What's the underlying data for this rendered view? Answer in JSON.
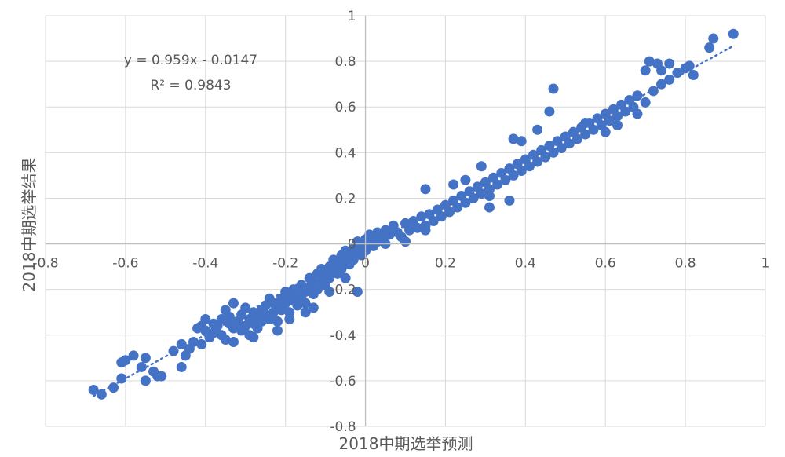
{
  "chart_data": {
    "type": "scatter",
    "title": "",
    "xlabel": "2018中期选举预测",
    "ylabel": "2018中期选举结果",
    "xlim": [
      -0.8,
      1
    ],
    "ylim": [
      -0.8,
      1
    ],
    "x_ticks": [
      -0.8,
      -0.6,
      -0.4,
      -0.2,
      0,
      0.2,
      0.4,
      0.6,
      0.8,
      1
    ],
    "y_ticks": [
      -0.8,
      -0.6,
      -0.4,
      -0.2,
      0,
      0.2,
      0.4,
      0.6,
      0.8,
      1
    ],
    "x_tick_labels": [
      "-0.8",
      "-0.6",
      "-0.4",
      "-0.2",
      "0",
      "0.2",
      "0.4",
      "0.6",
      "0.8",
      "1"
    ],
    "y_tick_labels": [
      "-0.8",
      "-0.6",
      "-0.4",
      "-0.2",
      "0",
      "0.2",
      "0.4",
      "0.6",
      "0.8",
      "1"
    ],
    "grid": true,
    "marker_color": "#4472C4",
    "trendline": {
      "type": "linear",
      "slope": 0.959,
      "intercept": -0.0147,
      "style": "dotted",
      "color": "#4472C4",
      "x_range": [
        -0.68,
        0.92
      ],
      "equation_label": "y = 0.959x - 0.0147",
      "r2_label": "R² = 0.9843"
    },
    "points": [
      [
        -0.68,
        -0.64
      ],
      [
        -0.66,
        -0.66
      ],
      [
        -0.63,
        -0.63
      ],
      [
        -0.61,
        -0.59
      ],
      [
        -0.61,
        -0.52
      ],
      [
        -0.6,
        -0.51
      ],
      [
        -0.58,
        -0.49
      ],
      [
        -0.56,
        -0.54
      ],
      [
        -0.55,
        -0.5
      ],
      [
        -0.55,
        -0.6
      ],
      [
        -0.53,
        -0.56
      ],
      [
        -0.52,
        -0.58
      ],
      [
        -0.51,
        -0.58
      ],
      [
        -0.48,
        -0.47
      ],
      [
        -0.46,
        -0.54
      ],
      [
        -0.46,
        -0.44
      ],
      [
        -0.45,
        -0.49
      ],
      [
        -0.44,
        -0.46
      ],
      [
        -0.43,
        -0.43
      ],
      [
        -0.42,
        -0.37
      ],
      [
        -0.41,
        -0.36
      ],
      [
        -0.4,
        -0.38
      ],
      [
        -0.39,
        -0.41
      ],
      [
        -0.38,
        -0.39
      ],
      [
        -0.37,
        -0.36
      ],
      [
        -0.36,
        -0.4
      ],
      [
        -0.36,
        -0.33
      ],
      [
        -0.35,
        -0.42
      ],
      [
        -0.35,
        -0.29
      ],
      [
        -0.34,
        -0.35
      ],
      [
        -0.34,
        -0.32
      ],
      [
        -0.33,
        -0.37
      ],
      [
        -0.33,
        -0.26
      ],
      [
        -0.32,
        -0.34
      ],
      [
        -0.31,
        -0.31
      ],
      [
        -0.31,
        -0.38
      ],
      [
        -0.3,
        -0.36
      ],
      [
        -0.3,
        -0.28
      ],
      [
        -0.29,
        -0.33
      ],
      [
        -0.29,
        -0.4
      ],
      [
        -0.28,
        -0.35
      ],
      [
        -0.28,
        -0.3
      ],
      [
        -0.27,
        -0.32
      ],
      [
        -0.27,
        -0.37
      ],
      [
        -0.26,
        -0.29
      ],
      [
        -0.26,
        -0.34
      ],
      [
        -0.25,
        -0.31
      ],
      [
        -0.25,
        -0.27
      ],
      [
        -0.24,
        -0.33
      ],
      [
        -0.24,
        -0.24
      ],
      [
        -0.23,
        -0.3
      ],
      [
        -0.23,
        -0.26
      ],
      [
        -0.22,
        -0.28
      ],
      [
        -0.22,
        -0.34
      ],
      [
        -0.21,
        -0.24
      ],
      [
        -0.21,
        -0.29
      ],
      [
        -0.2,
        -0.21
      ],
      [
        -0.2,
        -0.26
      ],
      [
        -0.19,
        -0.23
      ],
      [
        -0.19,
        -0.3
      ],
      [
        -0.18,
        -0.25
      ],
      [
        -0.18,
        -0.2
      ],
      [
        -0.17,
        -0.27
      ],
      [
        -0.17,
        -0.22
      ],
      [
        -0.16,
        -0.18
      ],
      [
        -0.16,
        -0.24
      ],
      [
        -0.15,
        -0.21
      ],
      [
        -0.15,
        -0.26
      ],
      [
        -0.14,
        -0.19
      ],
      [
        -0.14,
        -0.15
      ],
      [
        -0.13,
        -0.22
      ],
      [
        -0.13,
        -0.17
      ],
      [
        -0.12,
        -0.13
      ],
      [
        -0.12,
        -0.2
      ],
      [
        -0.11,
        -0.16
      ],
      [
        -0.11,
        -0.11
      ],
      [
        -0.1,
        -0.18
      ],
      [
        -0.1,
        -0.14
      ],
      [
        -0.09,
        -0.1
      ],
      [
        -0.09,
        -0.15
      ],
      [
        -0.08,
        -0.12
      ],
      [
        -0.08,
        -0.07
      ],
      [
        -0.07,
        -0.13
      ],
      [
        -0.07,
        -0.09
      ],
      [
        -0.06,
        -0.05
      ],
      [
        -0.06,
        -0.11
      ],
      [
        -0.05,
        -0.08
      ],
      [
        -0.05,
        -0.03
      ],
      [
        -0.04,
        -0.09
      ],
      [
        -0.04,
        -0.06
      ],
      [
        -0.03,
        -0.02
      ],
      [
        -0.03,
        -0.07
      ],
      [
        -0.02,
        -0.04
      ],
      [
        -0.02,
        0.01
      ],
      [
        -0.01,
        -0.05
      ],
      [
        -0.01,
        -0.01
      ],
      [
        0.0,
        0.02
      ],
      [
        0.0,
        -0.03
      ],
      [
        0.01,
        0.0
      ],
      [
        0.01,
        0.04
      ],
      [
        0.02,
        -0.01
      ],
      [
        0.02,
        0.03
      ],
      [
        0.03,
        0.01
      ],
      [
        0.03,
        0.05
      ],
      [
        0.04,
        0.02
      ],
      [
        0.05,
        0.06
      ],
      [
        0.05,
        0.0
      ],
      [
        0.06,
        0.04
      ],
      [
        0.07,
        0.08
      ],
      [
        0.08,
        0.05
      ],
      [
        0.09,
        0.03
      ],
      [
        0.1,
        0.09
      ],
      [
        0.11,
        0.06
      ],
      [
        0.12,
        0.1
      ],
      [
        0.13,
        0.07
      ],
      [
        0.14,
        0.12
      ],
      [
        0.15,
        0.08
      ],
      [
        0.16,
        0.13
      ],
      [
        0.17,
        0.1
      ],
      [
        0.18,
        0.15
      ],
      [
        0.19,
        0.12
      ],
      [
        0.2,
        0.17
      ],
      [
        0.21,
        0.14
      ],
      [
        0.22,
        0.19
      ],
      [
        0.23,
        0.16
      ],
      [
        0.24,
        0.21
      ],
      [
        0.25,
        0.18
      ],
      [
        0.26,
        0.23
      ],
      [
        0.27,
        0.2
      ],
      [
        0.28,
        0.25
      ],
      [
        0.29,
        0.22
      ],
      [
        0.3,
        0.27
      ],
      [
        0.31,
        0.24
      ],
      [
        0.32,
        0.29
      ],
      [
        0.33,
        0.26
      ],
      [
        0.34,
        0.31
      ],
      [
        0.35,
        0.28
      ],
      [
        0.36,
        0.33
      ],
      [
        0.37,
        0.3
      ],
      [
        0.38,
        0.35
      ],
      [
        0.39,
        0.32
      ],
      [
        0.4,
        0.37
      ],
      [
        0.41,
        0.34
      ],
      [
        0.42,
        0.39
      ],
      [
        0.43,
        0.36
      ],
      [
        0.44,
        0.41
      ],
      [
        0.45,
        0.38
      ],
      [
        0.46,
        0.43
      ],
      [
        0.47,
        0.4
      ],
      [
        0.48,
        0.45
      ],
      [
        0.49,
        0.42
      ],
      [
        0.5,
        0.47
      ],
      [
        0.51,
        0.44
      ],
      [
        0.52,
        0.49
      ],
      [
        0.53,
        0.46
      ],
      [
        0.54,
        0.51
      ],
      [
        0.55,
        0.48
      ],
      [
        0.56,
        0.53
      ],
      [
        0.57,
        0.5
      ],
      [
        0.58,
        0.55
      ],
      [
        0.59,
        0.52
      ],
      [
        0.6,
        0.57
      ],
      [
        0.61,
        0.54
      ],
      [
        0.62,
        0.59
      ],
      [
        0.63,
        0.56
      ],
      [
        0.64,
        0.61
      ],
      [
        0.65,
        0.58
      ],
      [
        0.66,
        0.63
      ],
      [
        0.67,
        0.6
      ],
      [
        0.68,
        0.65
      ],
      [
        0.7,
        0.62
      ],
      [
        0.72,
        0.67
      ],
      [
        0.74,
        0.7
      ],
      [
        0.76,
        0.72
      ],
      [
        0.78,
        0.75
      ],
      [
        0.8,
        0.77
      ],
      [
        0.7,
        0.76
      ],
      [
        0.71,
        0.8
      ],
      [
        0.73,
        0.79
      ],
      [
        0.74,
        0.76
      ],
      [
        0.76,
        0.79
      ],
      [
        0.81,
        0.78
      ],
      [
        0.82,
        0.74
      ],
      [
        0.86,
        0.86
      ],
      [
        0.87,
        0.9
      ],
      [
        0.92,
        0.92
      ],
      [
        0.47,
        0.68
      ],
      [
        0.46,
        0.58
      ],
      [
        0.43,
        0.5
      ],
      [
        0.37,
        0.46
      ],
      [
        0.39,
        0.45
      ],
      [
        0.15,
        0.24
      ],
      [
        0.15,
        0.06
      ],
      [
        0.1,
        0.01
      ],
      [
        0.22,
        0.26
      ],
      [
        0.25,
        0.28
      ],
      [
        0.29,
        0.34
      ],
      [
        0.31,
        0.21
      ],
      [
        0.31,
        0.16
      ],
      [
        0.36,
        0.19
      ],
      [
        0.55,
        0.53
      ],
      [
        0.6,
        0.49
      ],
      [
        0.63,
        0.52
      ],
      [
        0.68,
        0.57
      ],
      [
        -0.02,
        -0.21
      ],
      [
        -0.05,
        -0.15
      ],
      [
        -0.09,
        -0.21
      ],
      [
        -0.19,
        -0.33
      ],
      [
        -0.13,
        -0.28
      ],
      [
        -0.4,
        -0.33
      ],
      [
        -0.38,
        -0.35
      ],
      [
        -0.33,
        -0.43
      ],
      [
        -0.22,
        -0.38
      ],
      [
        -0.28,
        -0.41
      ],
      [
        -0.41,
        -0.44
      ],
      [
        -0.15,
        -0.3
      ]
    ]
  }
}
